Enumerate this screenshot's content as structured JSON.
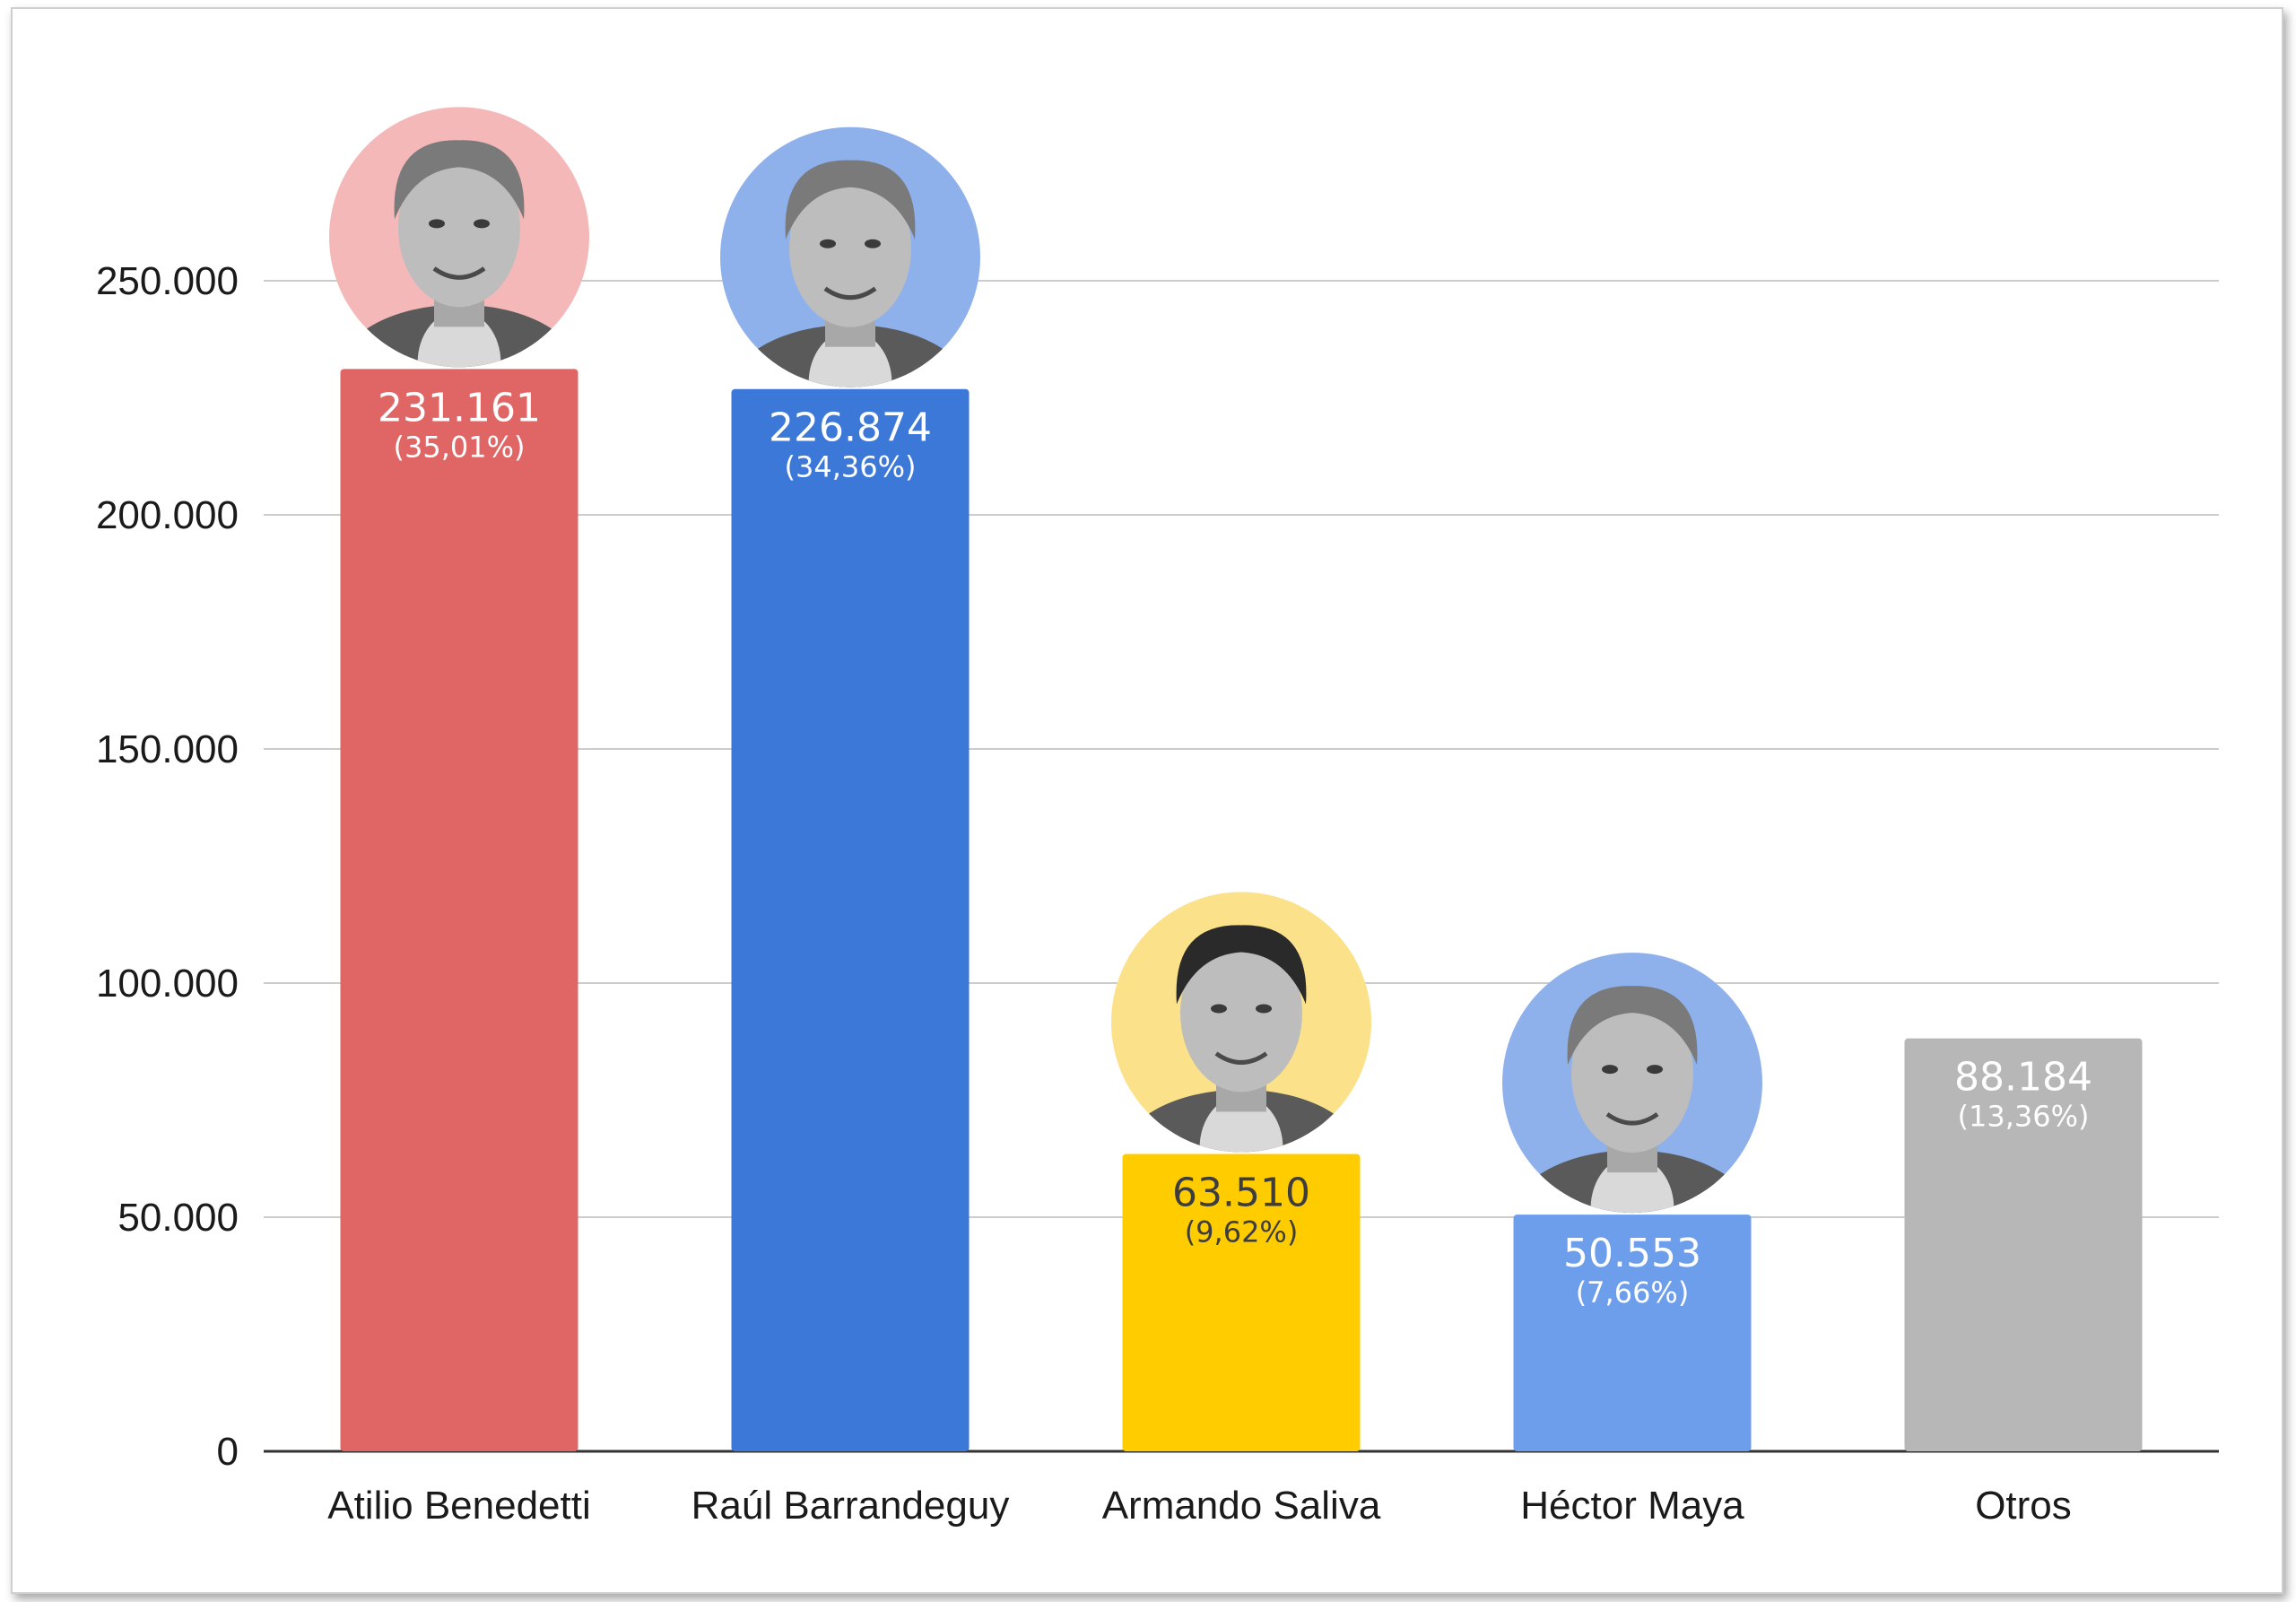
{
  "chart_data": {
    "type": "bar",
    "title": "",
    "xlabel": "",
    "ylabel": "",
    "ylim": [
      0,
      275000
    ],
    "yticks": [
      0,
      50000,
      100000,
      150000,
      200000,
      250000
    ],
    "ytick_labels": [
      "0",
      "50.000",
      "100.000",
      "150.000",
      "200.000",
      "250.000"
    ],
    "grid": true,
    "categories": [
      "Atilio Benedetti",
      "Raúl Barrandeguy",
      "Armando Saliva",
      "Héctor Maya",
      "Otros"
    ],
    "values": [
      231161,
      226874,
      63510,
      50553,
      88184
    ],
    "value_labels": [
      "231.161",
      "226.874",
      "63.510",
      "50.553",
      "88.184"
    ],
    "percent_labels": [
      "(35,01%)",
      "(34,36%)",
      "(9,62%)",
      "(7,66%)",
      "(13,36%)"
    ],
    "colors": [
      "#e06666",
      "#3c78d8",
      "#ffcc00",
      "#6d9eeb",
      "#b7b7b7"
    ],
    "label_colors": [
      "#ffffff",
      "#ffffff",
      "#3d3d3d",
      "#ffffff",
      "#ffffff"
    ],
    "portrait_ring_colors": [
      "#f4b8b8",
      "#8fb1eb",
      "#fbe28a",
      "#8fb1eb",
      null
    ],
    "portrait_icons": [
      "candidate-portrait",
      "candidate-portrait",
      "candidate-portrait",
      "candidate-portrait",
      null
    ]
  }
}
